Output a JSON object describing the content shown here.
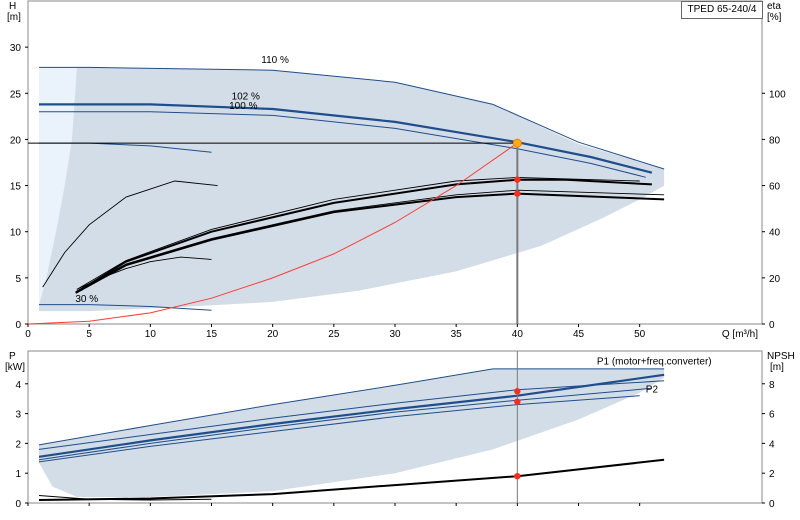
{
  "model_label": "TPED 65-240/4",
  "colors": {
    "envelope_fill": "#d3dde7",
    "envelope_light_fill": "#eaf3fb",
    "envelope_edge": "#2b5583",
    "curve_blue": "#1f4e8c",
    "curve_black": "#000000",
    "system_curve": "#ff3b30",
    "duty_marker": "#ff2a1a",
    "duty_point_fill": "#ffb000",
    "guide_line": "#7a7a7a",
    "grid": "#dddddd",
    "label_blue": "#2b5583"
  },
  "chart_data": [
    {
      "id": "head_chart",
      "type": "line",
      "x_axis": {
        "label": "Q [m³/h]",
        "range": [
          0,
          60
        ],
        "ticks": [
          0,
          5,
          10,
          15,
          20,
          25,
          30,
          35,
          40,
          45,
          50
        ]
      },
      "y_left_axis": {
        "label_top": "H",
        "label_unit": "[m]",
        "range": [
          0,
          35
        ],
        "ticks": [
          0,
          5,
          10,
          15,
          20,
          25,
          30
        ]
      },
      "y_right_axis": {
        "label_top": "eta",
        "label_unit": "[%]",
        "range": [
          0,
          140
        ],
        "ticks": [
          0,
          20,
          40,
          60,
          80,
          100
        ]
      },
      "grid": false,
      "operating_envelope": [
        [
          0.9,
          27.8
        ],
        [
          5,
          27.8
        ],
        [
          20,
          27.5
        ],
        [
          30,
          26.2
        ],
        [
          38,
          23.8
        ],
        [
          45,
          19.5
        ],
        [
          52,
          16.8
        ],
        [
          52,
          15
        ],
        [
          50,
          13.5
        ],
        [
          47,
          11.5
        ],
        [
          42,
          8.5
        ],
        [
          35,
          5.7
        ],
        [
          27,
          3.6
        ],
        [
          20,
          2.4
        ],
        [
          12,
          1.8
        ],
        [
          5,
          1.4
        ],
        [
          0.9,
          1.4
        ]
      ],
      "envelope_light_region": [
        [
          0.9,
          27.8
        ],
        [
          4,
          27.8
        ],
        [
          3.6,
          20
        ],
        [
          3,
          15
        ],
        [
          2.3,
          10
        ],
        [
          1.5,
          5
        ],
        [
          0.9,
          2
        ]
      ],
      "head_curves": [
        {
          "label": "110 %",
          "style": "thin",
          "points": [
            [
              0.9,
              27.8
            ],
            [
              5,
              27.8
            ],
            [
              20,
              27.5
            ],
            [
              30,
              26.2
            ],
            [
              38,
              23.8
            ],
            [
              45,
              19.7
            ],
            [
              52,
              16.8
            ]
          ]
        },
        {
          "label": "102 %",
          "style": "thick",
          "points": [
            [
              0.9,
              23.8
            ],
            [
              10,
              23.8
            ],
            [
              20,
              23.3
            ],
            [
              30,
              21.9
            ],
            [
              40,
              19.7
            ],
            [
              46,
              18.1
            ],
            [
              51,
              16.4
            ]
          ]
        },
        {
          "label": "100 %",
          "style": "thin",
          "points": [
            [
              0.9,
              23
            ],
            [
              10,
              23
            ],
            [
              20,
              22.6
            ],
            [
              30,
              21.2
            ],
            [
              40,
              19
            ],
            [
              46,
              17.4
            ],
            [
              50.5,
              15.9
            ]
          ]
        },
        {
          "label": "",
          "style": "thin",
          "points": [
            [
              0.9,
              19.6
            ],
            [
              5,
              19.6
            ],
            [
              10,
              19.3
            ],
            [
              15,
              18.6
            ]
          ]
        },
        {
          "label": "30 %",
          "style": "thin",
          "points": [
            [
              0.9,
              2.1
            ],
            [
              5,
              2.1
            ],
            [
              10,
              1.9
            ],
            [
              15,
              1.5
            ]
          ]
        }
      ],
      "efficiency_curves": [
        {
          "style": "thin",
          "points": [
            [
              1.2,
              16
            ],
            [
              3,
              31
            ],
            [
              5,
              43
            ],
            [
              8,
              55
            ],
            [
              12,
              62
            ],
            [
              15.5,
              60
            ]
          ]
        },
        {
          "style": "thin",
          "points": [
            [
              4,
              15
            ],
            [
              6,
              20
            ],
            [
              8,
              24
            ],
            [
              10,
              27
            ],
            [
              12.5,
              29
            ],
            [
              15,
              28
            ]
          ]
        },
        {
          "style": "thin",
          "points": [
            [
              3.9,
              14
            ],
            [
              8,
              26
            ],
            [
              15,
              37
            ],
            [
              25,
              49
            ],
            [
              35,
              56
            ],
            [
              40,
              58
            ],
            [
              52,
              56
            ]
          ]
        },
        {
          "style": "thick",
          "points": [
            [
              3.9,
              13.5
            ],
            [
              8,
              25.5
            ],
            [
              15,
              36.5
            ],
            [
              25,
              48.5
            ],
            [
              35,
              55
            ],
            [
              40,
              56.5
            ],
            [
              52,
              54
            ]
          ]
        },
        {
          "style": "thick",
          "points": [
            [
              4.2,
              14.5
            ],
            [
              8,
              27
            ],
            [
              15,
              40
            ],
            [
              25,
              52.5
            ],
            [
              35,
              60.5
            ],
            [
              40,
              62.5
            ],
            [
              44,
              62.5
            ],
            [
              51,
              60.5
            ]
          ]
        },
        {
          "style": "thin",
          "points": [
            [
              4,
              15
            ],
            [
              8,
              27.5
            ],
            [
              15,
              41
            ],
            [
              25,
              54
            ],
            [
              35,
              62
            ],
            [
              40,
              63.5
            ],
            [
              50,
              62
            ]
          ]
        }
      ],
      "system_curve": [
        [
          0,
          0
        ],
        [
          5,
          0.3
        ],
        [
          10,
          1.2
        ],
        [
          15,
          2.8
        ],
        [
          20,
          5
        ],
        [
          25,
          7.6
        ],
        [
          30,
          11
        ],
        [
          35,
          15
        ],
        [
          40,
          19.6
        ]
      ],
      "duty_point": {
        "q": 40,
        "h": 19.6
      },
      "markers": [
        {
          "q": 40,
          "eta": 62.6
        },
        {
          "q": 40,
          "eta": 56.5
        }
      ],
      "curve_labels": [
        {
          "text": "110 %",
          "q": 20.2,
          "h": 28.3
        },
        {
          "text": "102 %",
          "q": 17.8,
          "h": 24.3
        },
        {
          "text": "100 %",
          "q": 17.6,
          "h": 23.3
        },
        {
          "text": "30 %",
          "q": 4.8,
          "h": 2.4
        }
      ]
    },
    {
      "id": "power_chart",
      "type": "line",
      "x_axis": {
        "label": "",
        "range": [
          0,
          60
        ]
      },
      "y_left_axis": {
        "label_top": "P",
        "label_unit": "[kW]",
        "range": [
          0,
          5.1
        ],
        "ticks": [
          0,
          1,
          2,
          3,
          4
        ]
      },
      "y_right_axis": {
        "label_top": "NPSH",
        "label_unit": "[m]",
        "range": [
          0,
          10.2
        ],
        "ticks": [
          0,
          2,
          4,
          6,
          8
        ]
      },
      "grid": false,
      "power_envelope": [
        [
          0.9,
          1.95
        ],
        [
          10,
          2.6
        ],
        [
          20,
          3.3
        ],
        [
          30,
          3.95
        ],
        [
          38,
          4.5
        ],
        [
          45,
          4.5
        ],
        [
          52,
          4.5
        ],
        [
          52,
          4.2
        ],
        [
          50,
          3.7
        ],
        [
          45,
          2.8
        ],
        [
          38,
          1.8
        ],
        [
          30,
          1.0
        ],
        [
          20,
          0.4
        ],
        [
          10,
          0.2
        ],
        [
          4,
          0.2
        ],
        [
          2,
          0.55
        ],
        [
          0.9,
          1.35
        ]
      ],
      "power_curves": [
        {
          "label": "P1 (motor+freq.converter)",
          "style": "thin",
          "points": [
            [
              0.9,
              1.95
            ],
            [
              10,
              2.6
            ],
            [
              20,
              3.3
            ],
            [
              30,
              3.95
            ],
            [
              38,
              4.5
            ],
            [
              52,
              4.5
            ]
          ]
        },
        {
          "label": "",
          "style": "thin",
          "points": [
            [
              0.9,
              1.8
            ],
            [
              10,
              2.3
            ],
            [
              20,
              2.85
            ],
            [
              30,
              3.35
            ],
            [
              40,
              3.8
            ],
            [
              52,
              4.1
            ]
          ]
        },
        {
          "label": "",
          "style": "thick",
          "points": [
            [
              0.9,
              1.55
            ],
            [
              10,
              2.1
            ],
            [
              20,
              2.65
            ],
            [
              30,
              3.15
            ],
            [
              40,
              3.6
            ],
            [
              52,
              4.3
            ]
          ]
        },
        {
          "label": "",
          "style": "thin",
          "points": [
            [
              0.9,
              1.45
            ],
            [
              10,
              2.0
            ],
            [
              20,
              2.55
            ],
            [
              30,
              3.05
            ],
            [
              40,
              3.45
            ],
            [
              51,
              3.85
            ]
          ]
        },
        {
          "label": "P2",
          "style": "thin",
          "points": [
            [
              0.9,
              1.38
            ],
            [
              10,
              1.9
            ],
            [
              20,
              2.4
            ],
            [
              30,
              2.9
            ],
            [
              40,
              3.3
            ],
            [
              50,
              3.6
            ]
          ]
        }
      ],
      "npsh_curves": [
        {
          "style": "thin",
          "points": [
            [
              0.9,
              0.5
            ],
            [
              5,
              0.25
            ],
            [
              10,
              0.2
            ],
            [
              15,
              0.25
            ]
          ]
        },
        {
          "style": "thick",
          "points": [
            [
              0.9,
              0.2
            ],
            [
              10,
              0.3
            ],
            [
              20,
              0.6
            ],
            [
              30,
              1.2
            ],
            [
              40,
              1.8
            ],
            [
              52,
              2.9
            ]
          ]
        }
      ],
      "markers": [
        {
          "q": 40,
          "p": 3.75
        },
        {
          "q": 40,
          "p": 3.4
        },
        {
          "q": 40,
          "npsh": 1.8
        }
      ],
      "curve_labels": [
        {
          "text": "P1 (motor+freq.converter)",
          "q": 46.5,
          "p": 4.65
        },
        {
          "text": "P2",
          "q": 50.5,
          "p": 3.7
        }
      ]
    }
  ]
}
